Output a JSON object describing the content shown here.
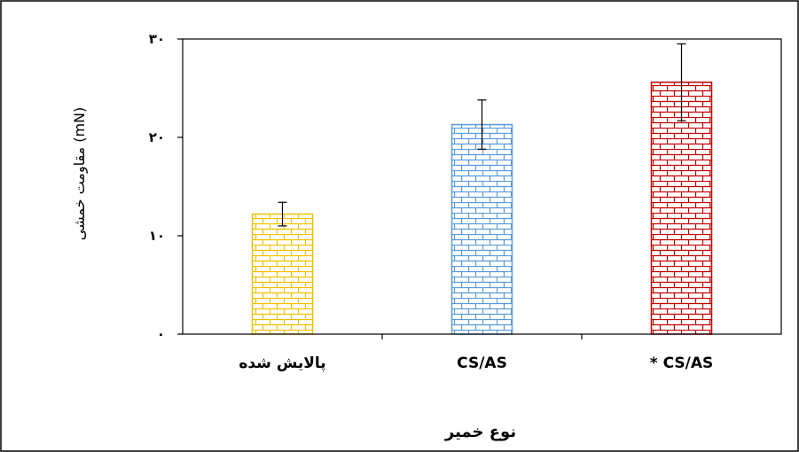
{
  "chart_data": {
    "type": "bar",
    "categories": [
      "پالایش شده",
      "CS/AS",
      "* CS/AS"
    ],
    "values": [
      12.2,
      21.3,
      25.6
    ],
    "errors": [
      1.2,
      2.5,
      3.9
    ],
    "colors": [
      "#f0c000",
      "#5b9bd5",
      "#c00000"
    ],
    "pattern": "brick",
    "title": "",
    "xlabel": "نوع خمیر",
    "ylabel": "مقاومت خمشی (mN)",
    "ylim": [
      0,
      30
    ],
    "yticks": [
      0,
      10,
      20,
      30
    ],
    "ytick_labels": [
      "٠",
      "١٠",
      "٢٠",
      "٣٠"
    ],
    "grid": false,
    "legend": "none"
  }
}
